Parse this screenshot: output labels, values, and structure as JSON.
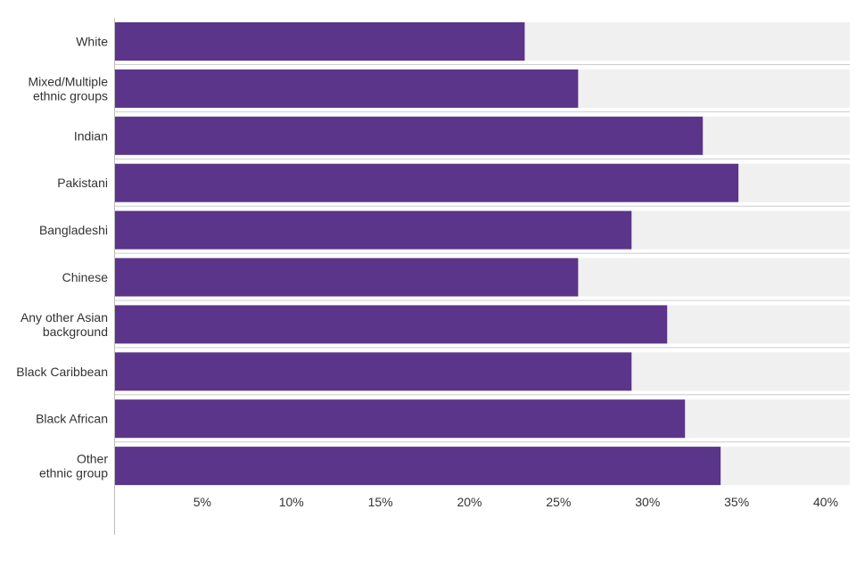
{
  "chart_data": {
    "type": "bar",
    "orientation": "horizontal",
    "categories": [
      [
        "White"
      ],
      [
        "Mixed/Multiple",
        "ethnic groups"
      ],
      [
        "Indian"
      ],
      [
        "Pakistani"
      ],
      [
        "Bangladeshi"
      ],
      [
        "Chinese"
      ],
      [
        "Any other Asian",
        "background"
      ],
      [
        "Black Caribbean"
      ],
      [
        "Black African"
      ],
      [
        "Other",
        "ethnic group"
      ]
    ],
    "values": [
      23,
      26,
      33,
      35,
      29,
      26,
      31,
      29,
      32,
      34
    ],
    "xlim": [
      0,
      41.25
    ],
    "x_ticks": [
      5,
      10,
      15,
      20,
      25,
      30,
      35,
      40
    ],
    "x_tick_labels": [
      "5%",
      "10%",
      "15%",
      "20%",
      "25%",
      "30%",
      "35%",
      "40%"
    ],
    "title": "",
    "xlabel": "",
    "ylabel": "",
    "grid": false,
    "legend": "none",
    "colors": {
      "bar": "#5a358a",
      "track": "#f0f0f0",
      "separator": "#cccccc",
      "axis": "#bbbbbb",
      "text": "#333333"
    }
  }
}
